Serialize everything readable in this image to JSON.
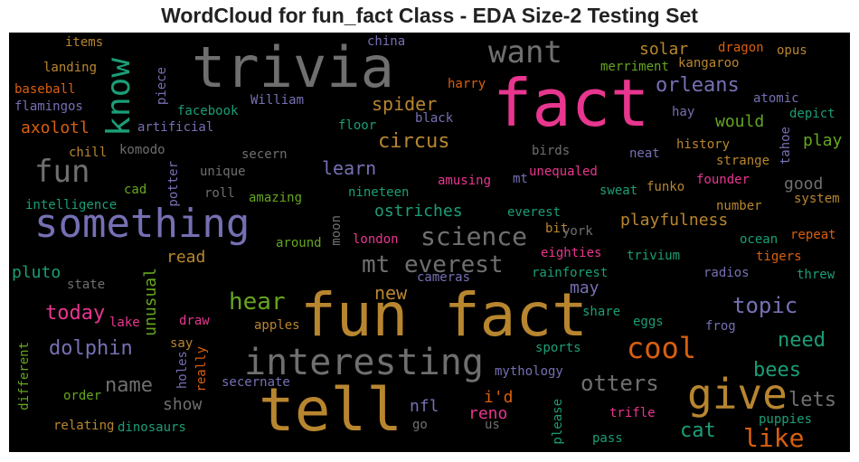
{
  "chart_data": {
    "type": "wordcloud",
    "title": "WordCloud for fun_fact Class - EDA Size-2 Testing Set",
    "background": "#000000",
    "palette": {
      "pink": "#e8368f",
      "orange": "#d95f0e",
      "gold": "#b8862f",
      "gray": "#6f6f6f",
      "purple": "#7570b3",
      "teal": "#1b9e77",
      "green": "#66a61e"
    },
    "words": [
      {
        "text": "fact",
        "c": "pink"
      },
      {
        "text": "fun fact",
        "c": "gold"
      },
      {
        "text": "tell",
        "c": "gold"
      },
      {
        "text": "trivia",
        "c": "gray"
      },
      {
        "text": "something",
        "c": "purple"
      },
      {
        "text": "give",
        "c": "gold"
      },
      {
        "text": "interesting",
        "c": "gray"
      },
      {
        "text": "want",
        "c": "gray"
      },
      {
        "text": "know",
        "c": "teal",
        "v": true
      },
      {
        "text": "fun",
        "c": "gray"
      },
      {
        "text": "science",
        "c": "gray"
      },
      {
        "text": "mt everest",
        "c": "gray"
      },
      {
        "text": "cool",
        "c": "orange"
      },
      {
        "text": "like",
        "c": "orange"
      },
      {
        "text": "hear",
        "c": "green"
      },
      {
        "text": "otters",
        "c": "gray"
      },
      {
        "text": "lets",
        "c": "gray"
      },
      {
        "text": "topic",
        "c": "purple"
      },
      {
        "text": "orleans",
        "c": "purple"
      },
      {
        "text": "circus",
        "c": "gold"
      },
      {
        "text": "today",
        "c": "pink"
      },
      {
        "text": "dolphin",
        "c": "purple"
      },
      {
        "text": "bees",
        "c": "teal"
      },
      {
        "text": "need",
        "c": "teal"
      },
      {
        "text": "cat",
        "c": "teal"
      },
      {
        "text": "name",
        "c": "gray"
      },
      {
        "text": "learn",
        "c": "purple"
      },
      {
        "text": "spider",
        "c": "gold"
      },
      {
        "text": "playfulness",
        "c": "gold"
      },
      {
        "text": "ostriches",
        "c": "teal"
      },
      {
        "text": "new",
        "c": "gold"
      },
      {
        "text": "solar",
        "c": "gold"
      },
      {
        "text": "would",
        "c": "green"
      },
      {
        "text": "play",
        "c": "green"
      },
      {
        "text": "i'd",
        "c": "orange"
      },
      {
        "text": "reno",
        "c": "pink"
      },
      {
        "text": "nfl",
        "c": "purple"
      },
      {
        "text": "axolotl",
        "c": "orange"
      },
      {
        "text": "pluto",
        "c": "teal"
      },
      {
        "text": "read",
        "c": "gold"
      },
      {
        "text": "may",
        "c": "purple"
      },
      {
        "text": "show",
        "c": "gray"
      },
      {
        "text": "good",
        "c": "gray"
      },
      {
        "text": "unusual",
        "c": "green",
        "v": true
      },
      {
        "text": "items",
        "c": "gold"
      },
      {
        "text": "landing",
        "c": "gold"
      },
      {
        "text": "baseball",
        "c": "orange"
      },
      {
        "text": "flamingos",
        "c": "purple"
      },
      {
        "text": "artificial",
        "c": "purple"
      },
      {
        "text": "chill",
        "c": "gold"
      },
      {
        "text": "intelligence",
        "c": "teal"
      },
      {
        "text": "state",
        "c": "gray"
      },
      {
        "text": "lake",
        "c": "pink"
      },
      {
        "text": "different",
        "c": "green",
        "v": true
      },
      {
        "text": "order",
        "c": "green"
      },
      {
        "text": "relating",
        "c": "gold"
      },
      {
        "text": "dinosaurs",
        "c": "teal"
      },
      {
        "text": "komodo",
        "c": "gray"
      },
      {
        "text": "cad",
        "c": "green"
      },
      {
        "text": "facebook",
        "c": "teal"
      },
      {
        "text": "piece",
        "c": "purple",
        "v": true
      },
      {
        "text": "William",
        "c": "purple"
      },
      {
        "text": "potter",
        "c": "purple",
        "v": true
      },
      {
        "text": "unique",
        "c": "gray"
      },
      {
        "text": "roll",
        "c": "gray"
      },
      {
        "text": "secern",
        "c": "gray"
      },
      {
        "text": "amazing",
        "c": "green"
      },
      {
        "text": "around",
        "c": "green"
      },
      {
        "text": "moon",
        "c": "gray",
        "v": true
      },
      {
        "text": "nineteen",
        "c": "teal"
      },
      {
        "text": "london",
        "c": "pink"
      },
      {
        "text": "apples",
        "c": "gold"
      },
      {
        "text": "draw",
        "c": "pink"
      },
      {
        "text": "say",
        "c": "gold"
      },
      {
        "text": "holes",
        "c": "purple",
        "v": true
      },
      {
        "text": "really",
        "c": "orange",
        "v": true
      },
      {
        "text": "secernate",
        "c": "purple"
      },
      {
        "text": "cameras",
        "c": "purple"
      },
      {
        "text": "china",
        "c": "purple"
      },
      {
        "text": "floor",
        "c": "teal"
      },
      {
        "text": "black",
        "c": "purple"
      },
      {
        "text": "harry",
        "c": "orange"
      },
      {
        "text": "birds",
        "c": "gray"
      },
      {
        "text": "amusing",
        "c": "pink"
      },
      {
        "text": "mt",
        "c": "purple"
      },
      {
        "text": "unequaled",
        "c": "pink"
      },
      {
        "text": "everest",
        "c": "teal"
      },
      {
        "text": "bit",
        "c": "gold"
      },
      {
        "text": "york",
        "c": "gray"
      },
      {
        "text": "eighties",
        "c": "pink"
      },
      {
        "text": "rainforest",
        "c": "teal"
      },
      {
        "text": "mythology",
        "c": "purple"
      },
      {
        "text": "sports",
        "c": "teal"
      },
      {
        "text": "please",
        "c": "teal",
        "v": true
      },
      {
        "text": "go",
        "c": "gray"
      },
      {
        "text": "us",
        "c": "gray"
      },
      {
        "text": "trifle",
        "c": "pink"
      },
      {
        "text": "pass",
        "c": "teal"
      },
      {
        "text": "share",
        "c": "teal"
      },
      {
        "text": "eggs",
        "c": "teal"
      },
      {
        "text": "frog",
        "c": "purple"
      },
      {
        "text": "trivium",
        "c": "teal"
      },
      {
        "text": "merriment",
        "c": "green"
      },
      {
        "text": "dragon",
        "c": "orange"
      },
      {
        "text": "kangaroo",
        "c": "gold"
      },
      {
        "text": "opus",
        "c": "gold"
      },
      {
        "text": "atomic",
        "c": "purple"
      },
      {
        "text": "hay",
        "c": "purple"
      },
      {
        "text": "depict",
        "c": "teal"
      },
      {
        "text": "history",
        "c": "gold"
      },
      {
        "text": "neat",
        "c": "purple"
      },
      {
        "text": "tahoe",
        "c": "purple",
        "v": true
      },
      {
        "text": "strange",
        "c": "gold"
      },
      {
        "text": "founder",
        "c": "pink"
      },
      {
        "text": "sweat",
        "c": "teal"
      },
      {
        "text": "funko",
        "c": "gold"
      },
      {
        "text": "system",
        "c": "gold"
      },
      {
        "text": "number",
        "c": "gold"
      },
      {
        "text": "ocean",
        "c": "teal"
      },
      {
        "text": "repeat",
        "c": "orange"
      },
      {
        "text": "tigers",
        "c": "orange"
      },
      {
        "text": "radios",
        "c": "purple"
      },
      {
        "text": "threw",
        "c": "teal"
      },
      {
        "text": "puppies",
        "c": "teal"
      }
    ]
  }
}
